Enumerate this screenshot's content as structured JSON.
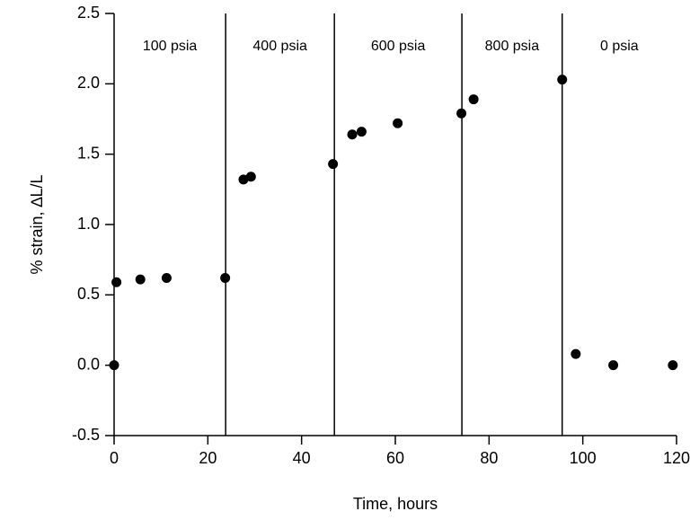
{
  "chart_data": {
    "type": "scatter",
    "xlabel": "Time, hours",
    "ylabel": "% strain, ∆L/L",
    "x": [
      0,
      0.5,
      5.6,
      11.2,
      23.7,
      27.6,
      29.2,
      46.7,
      50.8,
      52.8,
      60.5,
      74.1,
      76.7,
      95.6,
      98.5,
      106.5,
      119.2
    ],
    "series": [
      {
        "color": "#000000",
        "values": [
          0,
          0.59,
          0.61,
          0.62,
          0.62,
          1.32,
          1.34,
          1.43,
          1.64,
          1.66,
          1.72,
          1.79,
          1.89,
          2.03,
          0.08,
          0,
          0
        ]
      }
    ],
    "phase_boundaries": [
      23.8,
      47,
      74.2,
      95.6
    ],
    "phase_labels": [
      "100 psia",
      "400 psia",
      "600 psia",
      "800 psia",
      "0 psia"
    ],
    "xlim": [
      0,
      120
    ],
    "xticks": [
      0,
      20,
      40,
      60,
      80,
      100,
      120
    ],
    "ylim": [
      -0.5,
      2.5
    ],
    "yticks": [
      -0.5,
      {
        "value": 0,
        "label": "0.0"
      },
      0.5,
      {
        "value": 1,
        "label": "1.0"
      },
      1.5,
      {
        "value": 2,
        "label": "2.0"
      },
      2.5
    ]
  }
}
